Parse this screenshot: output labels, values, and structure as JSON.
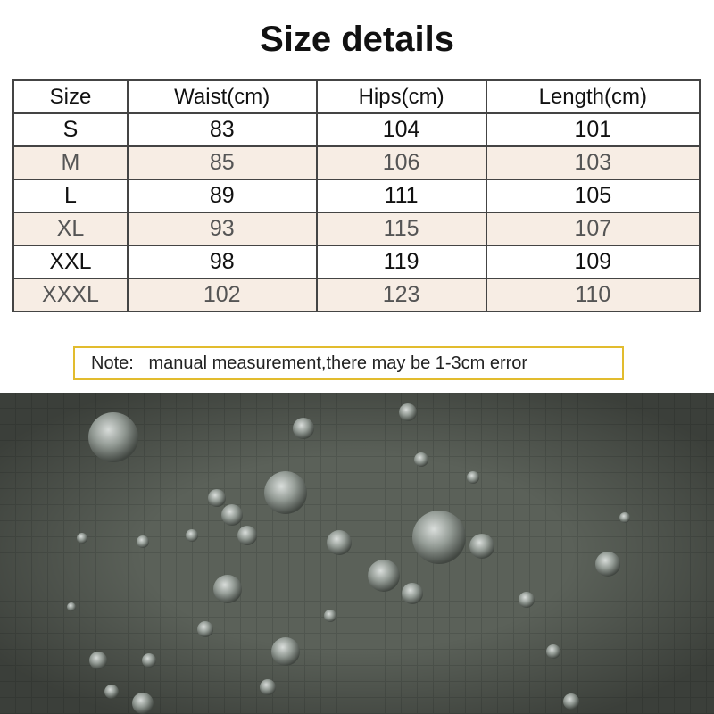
{
  "title": "Size details",
  "table": {
    "headers": [
      "Size",
      "Waist(cm)",
      "Hips(cm)",
      "Length(cm)"
    ],
    "rows": [
      [
        "S",
        "83",
        "104",
        "101"
      ],
      [
        "M",
        "85",
        "106",
        "103"
      ],
      [
        "L",
        "89",
        "111",
        "105"
      ],
      [
        "XL",
        "93",
        "115",
        "107"
      ],
      [
        "XXL",
        "98",
        "119",
        "109"
      ],
      [
        "XXXL",
        "102",
        "123",
        "110"
      ]
    ]
  },
  "note": "Note:   manual measurement,there may be 1-3cm error",
  "colors": {
    "alt_row": "#f7ede4",
    "note_border": "#e2bc2e",
    "fabric": "#5b6159"
  }
}
